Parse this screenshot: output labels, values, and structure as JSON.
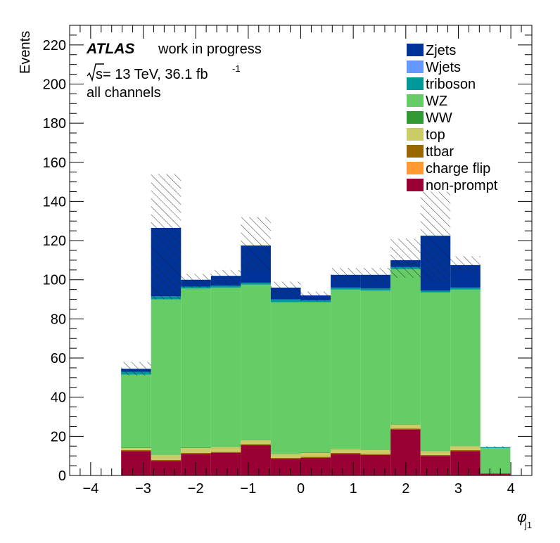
{
  "chart_data": {
    "type": "stacked-histogram",
    "xlabel_main": "φ",
    "xlabel_sub": "j1",
    "ylabel": "Events",
    "xlim": [
      -4.4,
      4.4
    ],
    "ylim": [
      0,
      230
    ],
    "x_ticks": [
      -4,
      -3,
      -2,
      -1,
      0,
      1,
      2,
      3,
      4
    ],
    "x_tick_labels": [
      "−4",
      "−3",
      "−2",
      "−1",
      "0",
      "1",
      "2",
      "3",
      "4"
    ],
    "y_ticks": [
      0,
      20,
      40,
      60,
      80,
      100,
      120,
      140,
      160,
      180,
      200,
      220
    ],
    "y_tick_labels": [
      "0",
      "20",
      "40",
      "60",
      "80",
      "100",
      "120",
      "140",
      "160",
      "180",
      "200",
      "220"
    ],
    "bin_edges": [
      -3.42,
      -2.85,
      -2.28,
      -1.71,
      -1.14,
      -0.57,
      0.0,
      0.57,
      1.14,
      1.71,
      2.28,
      2.85,
      3.42
    ],
    "series": [
      {
        "name": "non-prompt",
        "color": "#990033",
        "values": [
          12.5,
          7.5,
          11,
          11.5,
          15.5,
          8.5,
          9,
          11,
          10.5,
          23.5,
          10,
          12.5
        ]
      },
      {
        "name": "charge flip",
        "color": "#ff9933",
        "values": [
          0,
          0,
          0,
          0,
          0,
          0,
          0,
          0,
          0,
          0,
          0,
          0
        ]
      },
      {
        "name": "ttbar",
        "color": "#996600",
        "values": [
          0.5,
          0.5,
          0.5,
          0.5,
          0.5,
          0.5,
          0.5,
          0.5,
          0.5,
          0.5,
          0.5,
          0.5
        ]
      },
      {
        "name": "top",
        "color": "#cccc66",
        "values": [
          1,
          2.5,
          2.5,
          2.5,
          2,
          2,
          2,
          2,
          2,
          2,
          2,
          2
        ]
      },
      {
        "name": "WW",
        "color": "#339933",
        "values": [
          0.2,
          0.2,
          0.2,
          0.2,
          0.2,
          0.2,
          0.2,
          0.2,
          0.2,
          0.2,
          0.2,
          0.2
        ]
      },
      {
        "name": "WZ",
        "color": "#66cc66",
        "values": [
          37.3,
          79.3,
          81.3,
          81.3,
          79.3,
          77.3,
          76.8,
          81.3,
          81.3,
          79.3,
          80.8,
          79.8
        ]
      },
      {
        "name": "triboson",
        "color": "#009999",
        "values": [
          1.5,
          1.5,
          1,
          1,
          1,
          1.5,
          1,
          1,
          1,
          1,
          1,
          1
        ]
      },
      {
        "name": "Wjets",
        "color": "#6699ff",
        "values": [
          0,
          0,
          0,
          0,
          0,
          0,
          0,
          0,
          0,
          0,
          0,
          0
        ]
      },
      {
        "name": "Zjets",
        "color": "#003399",
        "values": [
          1.5,
          35,
          3.5,
          5,
          19,
          6,
          2.5,
          6.5,
          7,
          3.5,
          28,
          11.5
        ]
      }
    ],
    "extra_bin": {
      "x0": 3.42,
      "x1": 3.99,
      "segments": [
        {
          "name": "non-prompt",
          "color": "#990033",
          "value": 1
        },
        {
          "name": "WZ",
          "color": "#66cc66",
          "value": 13
        },
        {
          "name": "triboson",
          "color": "#009999",
          "value": 0.5
        }
      ]
    },
    "uncertainty_band": {
      "bins": [
        {
          "x0": -3.42,
          "x1": -2.85,
          "low": 51,
          "high": 58
        },
        {
          "x0": -2.85,
          "x1": -2.28,
          "low": 90,
          "high": 154
        },
        {
          "x0": -2.28,
          "x1": -1.71,
          "low": 96,
          "high": 103
        },
        {
          "x0": -1.71,
          "x1": -1.14,
          "low": 97,
          "high": 105
        },
        {
          "x0": -1.14,
          "x1": -0.57,
          "low": 104,
          "high": 132
        },
        {
          "x0": -0.57,
          "x1": 0.0,
          "low": 91,
          "high": 99
        },
        {
          "x0": 0.0,
          "x1": 0.57,
          "low": 89,
          "high": 94
        },
        {
          "x0": 0.57,
          "x1": 1.14,
          "low": 98,
          "high": 106
        },
        {
          "x0": 1.14,
          "x1": 1.71,
          "low": 98,
          "high": 106
        },
        {
          "x0": 1.71,
          "x1": 2.28,
          "low": 101,
          "high": 121
        },
        {
          "x0": 2.28,
          "x1": 2.85,
          "low": 99,
          "high": 145
        },
        {
          "x0": 2.85,
          "x1": 3.42,
          "low": 104,
          "high": 112
        },
        {
          "x0": 3.42,
          "x1": 3.99,
          "low": 14,
          "high": 15
        }
      ]
    },
    "annotations": {
      "atlas": "ATLAS",
      "status": "work in progress",
      "energy_prefix": "s",
      "energy_text": " = 13 TeV, 36.1 fb",
      "energy_sup": "-1",
      "channel": "all channels"
    },
    "legend_position": "top-right",
    "legend": [
      {
        "label": "Zjets",
        "color": "#003399"
      },
      {
        "label": "Wjets",
        "color": "#6699ff"
      },
      {
        "label": "triboson",
        "color": "#009999"
      },
      {
        "label": "WZ",
        "color": "#66cc66"
      },
      {
        "label": "WW",
        "color": "#339933"
      },
      {
        "label": "top",
        "color": "#cccc66"
      },
      {
        "label": "ttbar",
        "color": "#996600"
      },
      {
        "label": "charge flip",
        "color": "#ff9933"
      },
      {
        "label": "non-prompt",
        "color": "#990033"
      }
    ]
  }
}
